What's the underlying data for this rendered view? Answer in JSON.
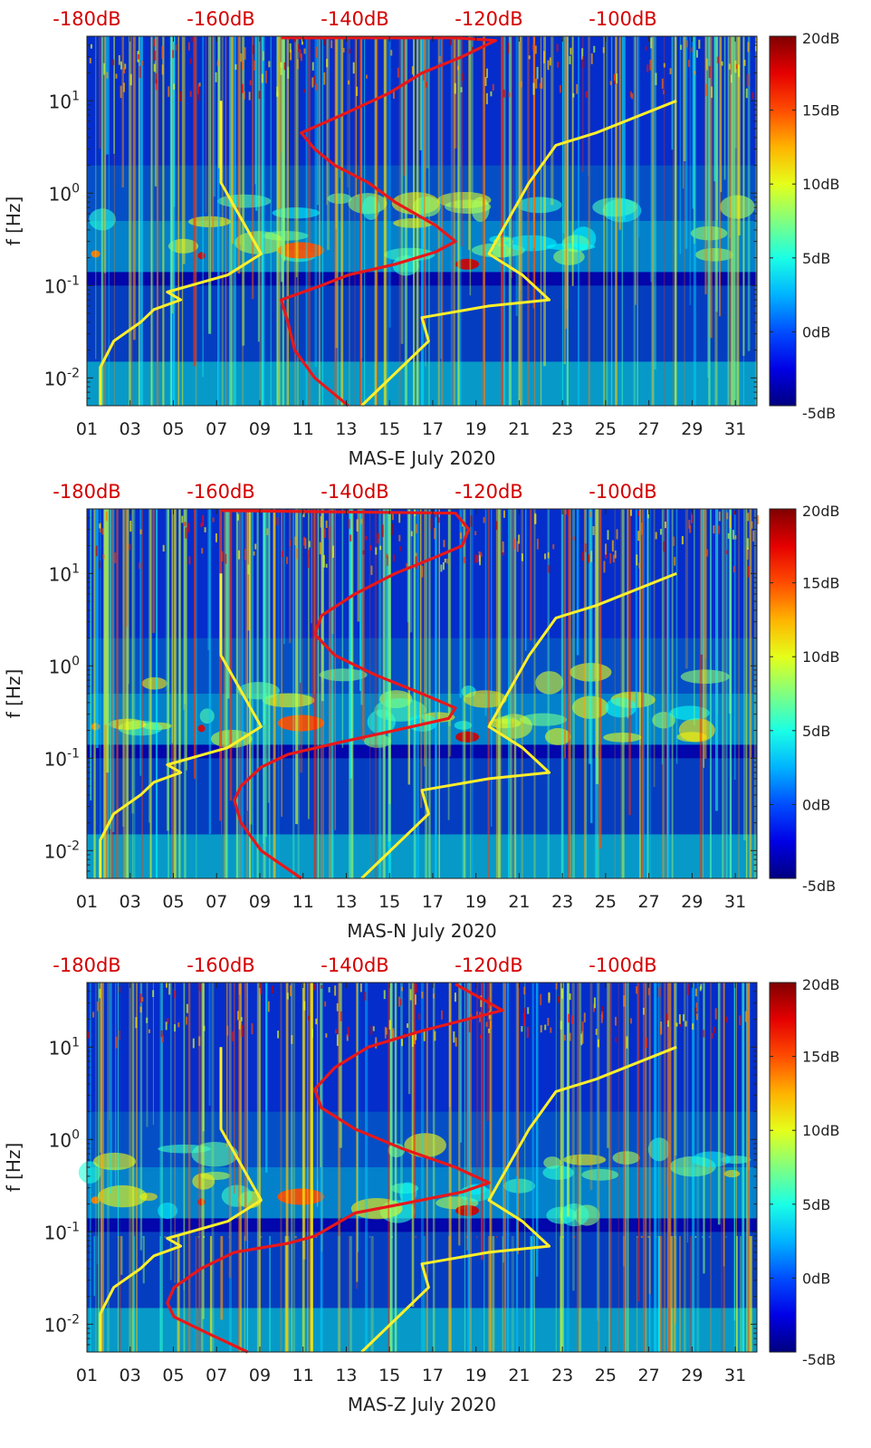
{
  "figure": {
    "colors": {
      "background_deep": "#0a1f8c",
      "background_mid": "#1a55e0",
      "noise_line_model": "#ffef2a",
      "psd_curve": "#e8171a",
      "top_axis_text": "#d40000"
    },
    "colorbar": {
      "min_label": "-5dB",
      "tick_labels": [
        "-5dB",
        "0dB",
        "5dB",
        "10dB",
        "15dB",
        "20dB"
      ],
      "tick_values": [
        -5,
        0,
        5,
        10,
        15,
        20
      ],
      "colormap": "jet"
    }
  },
  "chart_data": [
    {
      "type": "heatmap",
      "panel_id": "mas-e",
      "xlabel": "MAS-E July 2020",
      "ylabel": "f [Hz]",
      "x_tick_labels": [
        "01",
        "03",
        "05",
        "07",
        "09",
        "11",
        "13",
        "15",
        "17",
        "19",
        "21",
        "23",
        "25",
        "27",
        "29",
        "31"
      ],
      "x_tick_values": [
        1,
        3,
        5,
        7,
        9,
        11,
        13,
        15,
        17,
        19,
        21,
        23,
        25,
        27,
        29,
        31
      ],
      "xlim": [
        1,
        32
      ],
      "y_scale": "log",
      "ylim": [
        0.005,
        50
      ],
      "y_tick_values": [
        0.01,
        0.1,
        1,
        10
      ],
      "y_tick_labels": [
        {
          "base": "10",
          "exp": "-2"
        },
        {
          "base": "10",
          "exp": "-1"
        },
        {
          "base": "10",
          "exp": "0"
        },
        {
          "base": "10",
          "exp": "1"
        }
      ],
      "top_axis_labels": [
        "-180dB",
        "-160dB",
        "-140dB",
        "-120dB",
        "-100dB"
      ],
      "top_axis_values": [
        -180,
        -160,
        -140,
        -120,
        -100
      ],
      "top_axis_range_db": [
        -180,
        -80
      ],
      "colorbar_range_db": [
        -5,
        20
      ],
      "series": [
        {
          "role": "noise-model-low",
          "x_db": [
            -178,
            -178,
            -176,
            -172,
            -170,
            -166,
            -168,
            -159,
            -154,
            -160,
            -160
          ],
          "y_hz": [
            0.005,
            0.013,
            0.025,
            0.04,
            0.055,
            0.07,
            0.085,
            0.13,
            0.22,
            1.3,
            10
          ]
        },
        {
          "role": "noise-model-high",
          "x_db": [
            -139,
            -129,
            -130,
            -120,
            -111,
            -115,
            -120,
            -114,
            -110,
            -104,
            -92
          ],
          "y_hz": [
            0.005,
            0.025,
            0.045,
            0.06,
            0.07,
            0.13,
            0.22,
            1.3,
            3.3,
            4.5,
            10
          ]
        },
        {
          "role": "psd-average",
          "x_db": [
            -141,
            -146,
            -149,
            -150,
            -151,
            -145,
            -141,
            -134,
            -128,
            -125,
            -128,
            -134,
            -138,
            -143,
            -146,
            -148,
            -142,
            -135,
            -130,
            -124,
            -119,
            -125,
            -151
          ],
          "y_hz": [
            0.005,
            0.01,
            0.02,
            0.04,
            0.07,
            0.1,
            0.13,
            0.17,
            0.23,
            0.3,
            0.45,
            0.8,
            1.3,
            2.0,
            3.0,
            4.5,
            7.0,
            12,
            20,
            30,
            45,
            48,
            48
          ]
        }
      ]
    },
    {
      "type": "heatmap",
      "panel_id": "mas-n",
      "xlabel": "MAS-N July 2020",
      "ylabel": "f [Hz]",
      "x_tick_labels": [
        "01",
        "03",
        "05",
        "07",
        "09",
        "11",
        "13",
        "15",
        "17",
        "19",
        "21",
        "23",
        "25",
        "27",
        "29",
        "31"
      ],
      "x_tick_values": [
        1,
        3,
        5,
        7,
        9,
        11,
        13,
        15,
        17,
        19,
        21,
        23,
        25,
        27,
        29,
        31
      ],
      "xlim": [
        1,
        32
      ],
      "y_scale": "log",
      "ylim": [
        0.005,
        50
      ],
      "y_tick_values": [
        0.01,
        0.1,
        1,
        10
      ],
      "y_tick_labels": [
        {
          "base": "10",
          "exp": "-2"
        },
        {
          "base": "10",
          "exp": "-1"
        },
        {
          "base": "10",
          "exp": "0"
        },
        {
          "base": "10",
          "exp": "1"
        }
      ],
      "top_axis_labels": [
        "-180dB",
        "-160dB",
        "-140dB",
        "-120dB",
        "-100dB"
      ],
      "top_axis_values": [
        -180,
        -160,
        -140,
        -120,
        -100
      ],
      "top_axis_range_db": [
        -180,
        -80
      ],
      "colorbar_range_db": [
        -5,
        20
      ],
      "series": [
        {
          "role": "noise-model-low",
          "x_db": [
            -178,
            -178,
            -176,
            -172,
            -170,
            -166,
            -168,
            -159,
            -154,
            -160,
            -160
          ],
          "y_hz": [
            0.005,
            0.013,
            0.025,
            0.04,
            0.055,
            0.07,
            0.085,
            0.13,
            0.22,
            1.3,
            10
          ]
        },
        {
          "role": "noise-model-high",
          "x_db": [
            -139,
            -129,
            -130,
            -120,
            -111,
            -115,
            -120,
            -114,
            -110,
            -104,
            -92
          ],
          "y_hz": [
            0.005,
            0.025,
            0.045,
            0.06,
            0.07,
            0.13,
            0.22,
            1.3,
            3.3,
            4.5,
            10
          ]
        },
        {
          "role": "psd-average",
          "x_db": [
            -148,
            -154,
            -157,
            -158,
            -157,
            -154,
            -150,
            -142,
            -134,
            -126,
            -125,
            -130,
            -137,
            -143,
            -146,
            -145,
            -140,
            -134,
            -128,
            -124,
            -123,
            -125,
            -160
          ],
          "y_hz": [
            0.005,
            0.01,
            0.02,
            0.035,
            0.05,
            0.08,
            0.11,
            0.15,
            0.2,
            0.27,
            0.35,
            0.5,
            0.8,
            1.3,
            2.2,
            3.5,
            6.0,
            10,
            15,
            20,
            30,
            45,
            48
          ]
        }
      ]
    },
    {
      "type": "heatmap",
      "panel_id": "mas-z",
      "xlabel": "MAS-Z July 2020",
      "ylabel": "f [Hz]",
      "x_tick_labels": [
        "01",
        "03",
        "05",
        "07",
        "09",
        "11",
        "13",
        "15",
        "17",
        "19",
        "21",
        "23",
        "25",
        "27",
        "29",
        "31"
      ],
      "x_tick_values": [
        1,
        3,
        5,
        7,
        9,
        11,
        13,
        15,
        17,
        19,
        21,
        23,
        25,
        27,
        29,
        31
      ],
      "xlim": [
        1,
        32
      ],
      "y_scale": "log",
      "ylim": [
        0.005,
        50
      ],
      "y_tick_values": [
        0.01,
        0.1,
        1,
        10
      ],
      "y_tick_labels": [
        {
          "base": "10",
          "exp": "-2"
        },
        {
          "base": "10",
          "exp": "-1"
        },
        {
          "base": "10",
          "exp": "0"
        },
        {
          "base": "10",
          "exp": "1"
        }
      ],
      "top_axis_labels": [
        "-180dB",
        "-160dB",
        "-140dB",
        "-120dB",
        "-100dB"
      ],
      "top_axis_values": [
        -180,
        -160,
        -140,
        -120,
        -100
      ],
      "top_axis_range_db": [
        -180,
        -80
      ],
      "colorbar_range_db": [
        -5,
        20
      ],
      "series": [
        {
          "role": "noise-model-low",
          "x_db": [
            -178,
            -178,
            -176,
            -172,
            -170,
            -166,
            -168,
            -159,
            -154,
            -160,
            -160
          ],
          "y_hz": [
            0.005,
            0.013,
            0.025,
            0.04,
            0.055,
            0.07,
            0.085,
            0.13,
            0.22,
            1.3,
            10
          ]
        },
        {
          "role": "noise-model-high",
          "x_db": [
            -139,
            -129,
            -130,
            -120,
            -111,
            -115,
            -120,
            -114,
            -110,
            -104,
            -92
          ],
          "y_hz": [
            0.005,
            0.025,
            0.045,
            0.06,
            0.07,
            0.13,
            0.22,
            1.3,
            3.3,
            4.5,
            10
          ]
        },
        {
          "role": "psd-average",
          "x_db": [
            -156,
            -162,
            -167,
            -168,
            -167,
            -163,
            -158,
            -150,
            -146,
            -143,
            -140,
            -133,
            -124,
            -120,
            -125,
            -133,
            -140,
            -145,
            -146,
            -143,
            -138,
            -130,
            -118,
            -125
          ],
          "y_hz": [
            0.005,
            0.008,
            0.012,
            0.017,
            0.025,
            0.04,
            0.06,
            0.075,
            0.09,
            0.12,
            0.16,
            0.2,
            0.27,
            0.34,
            0.5,
            0.8,
            1.3,
            2.2,
            3.5,
            6.0,
            10,
            15,
            25,
            48
          ]
        }
      ]
    }
  ]
}
